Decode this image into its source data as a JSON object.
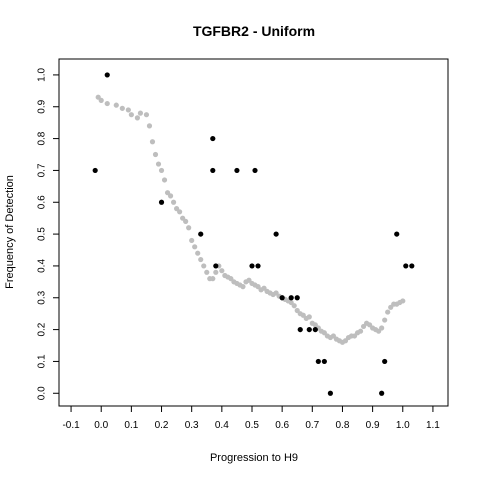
{
  "chart_data": {
    "type": "scatter",
    "title": "TGFBR2 - Uniform",
    "xlabel": "Progression to H9",
    "ylabel": "Frequency of Detection",
    "xlim": [
      -0.14,
      1.15
    ],
    "ylim": [
      -0.04,
      1.05
    ],
    "xticks": [
      -0.1,
      0.0,
      0.1,
      0.2,
      0.3,
      0.4,
      0.5,
      0.6,
      0.7,
      0.8,
      0.9,
      1.0,
      1.1
    ],
    "yticks": [
      0.0,
      0.1,
      0.2,
      0.3,
      0.4,
      0.5,
      0.6,
      0.7,
      0.8,
      0.9,
      1.0
    ],
    "grid": false,
    "colors": {
      "observed": "#000000",
      "smoothed": "#bebebe"
    },
    "series": [
      {
        "points": [
          [
            -0.02,
            0.7
          ],
          [
            0.02,
            1.0
          ],
          [
            0.2,
            0.6
          ],
          [
            0.33,
            0.5
          ],
          [
            0.37,
            0.8
          ],
          [
            0.37,
            0.7
          ],
          [
            0.38,
            0.4
          ],
          [
            0.45,
            0.7
          ],
          [
            0.5,
            0.4
          ],
          [
            0.51,
            0.7
          ],
          [
            0.52,
            0.4
          ],
          [
            0.58,
            0.5
          ],
          [
            0.6,
            0.3
          ],
          [
            0.63,
            0.3
          ],
          [
            0.65,
            0.3
          ],
          [
            0.66,
            0.2
          ],
          [
            0.69,
            0.2
          ],
          [
            0.71,
            0.2
          ],
          [
            0.72,
            0.1
          ],
          [
            0.74,
            0.1
          ],
          [
            0.76,
            0.0
          ],
          [
            0.93,
            0.0
          ],
          [
            0.94,
            0.1
          ],
          [
            0.98,
            0.5
          ],
          [
            1.01,
            0.4
          ],
          [
            1.03,
            0.4
          ]
        ]
      },
      {
        "points": [
          [
            -0.01,
            0.93
          ],
          [
            0.0,
            0.92
          ],
          [
            0.02,
            0.91
          ],
          [
            0.05,
            0.905
          ],
          [
            0.07,
            0.895
          ],
          [
            0.09,
            0.89
          ],
          [
            0.1,
            0.875
          ],
          [
            0.12,
            0.865
          ],
          [
            0.13,
            0.88
          ],
          [
            0.15,
            0.875
          ],
          [
            0.16,
            0.84
          ],
          [
            0.17,
            0.79
          ],
          [
            0.18,
            0.75
          ],
          [
            0.19,
            0.72
          ],
          [
            0.2,
            0.7
          ],
          [
            0.21,
            0.67
          ],
          [
            0.22,
            0.63
          ],
          [
            0.23,
            0.62
          ],
          [
            0.24,
            0.6
          ],
          [
            0.25,
            0.58
          ],
          [
            0.26,
            0.57
          ],
          [
            0.27,
            0.55
          ],
          [
            0.28,
            0.54
          ],
          [
            0.29,
            0.52
          ],
          [
            0.3,
            0.48
          ],
          [
            0.31,
            0.46
          ],
          [
            0.32,
            0.44
          ],
          [
            0.33,
            0.42
          ],
          [
            0.34,
            0.4
          ],
          [
            0.35,
            0.38
          ],
          [
            0.36,
            0.36
          ],
          [
            0.37,
            0.36
          ],
          [
            0.38,
            0.38
          ],
          [
            0.39,
            0.4
          ],
          [
            0.4,
            0.385
          ],
          [
            0.41,
            0.37
          ],
          [
            0.42,
            0.365
          ],
          [
            0.43,
            0.36
          ],
          [
            0.44,
            0.35
          ],
          [
            0.45,
            0.345
          ],
          [
            0.46,
            0.34
          ],
          [
            0.47,
            0.335
          ],
          [
            0.48,
            0.35
          ],
          [
            0.49,
            0.355
          ],
          [
            0.5,
            0.345
          ],
          [
            0.51,
            0.34
          ],
          [
            0.52,
            0.335
          ],
          [
            0.53,
            0.325
          ],
          [
            0.54,
            0.33
          ],
          [
            0.55,
            0.32
          ],
          [
            0.56,
            0.315
          ],
          [
            0.57,
            0.31
          ],
          [
            0.58,
            0.315
          ],
          [
            0.59,
            0.305
          ],
          [
            0.6,
            0.3
          ],
          [
            0.61,
            0.295
          ],
          [
            0.62,
            0.29
          ],
          [
            0.63,
            0.285
          ],
          [
            0.64,
            0.275
          ],
          [
            0.65,
            0.26
          ],
          [
            0.66,
            0.25
          ],
          [
            0.67,
            0.245
          ],
          [
            0.68,
            0.235
          ],
          [
            0.69,
            0.24
          ],
          [
            0.7,
            0.22
          ],
          [
            0.71,
            0.215
          ],
          [
            0.72,
            0.205
          ],
          [
            0.73,
            0.195
          ],
          [
            0.74,
            0.19
          ],
          [
            0.75,
            0.18
          ],
          [
            0.76,
            0.175
          ],
          [
            0.77,
            0.18
          ],
          [
            0.78,
            0.17
          ],
          [
            0.79,
            0.165
          ],
          [
            0.8,
            0.16
          ],
          [
            0.81,
            0.165
          ],
          [
            0.82,
            0.175
          ],
          [
            0.83,
            0.18
          ],
          [
            0.84,
            0.18
          ],
          [
            0.85,
            0.19
          ],
          [
            0.86,
            0.195
          ],
          [
            0.87,
            0.21
          ],
          [
            0.88,
            0.22
          ],
          [
            0.89,
            0.215
          ],
          [
            0.9,
            0.205
          ],
          [
            0.91,
            0.2
          ],
          [
            0.92,
            0.195
          ],
          [
            0.93,
            0.205
          ],
          [
            0.94,
            0.23
          ],
          [
            0.95,
            0.255
          ],
          [
            0.96,
            0.27
          ],
          [
            0.97,
            0.28
          ],
          [
            0.98,
            0.28
          ],
          [
            0.99,
            0.285
          ],
          [
            1.0,
            0.29
          ]
        ]
      }
    ]
  }
}
